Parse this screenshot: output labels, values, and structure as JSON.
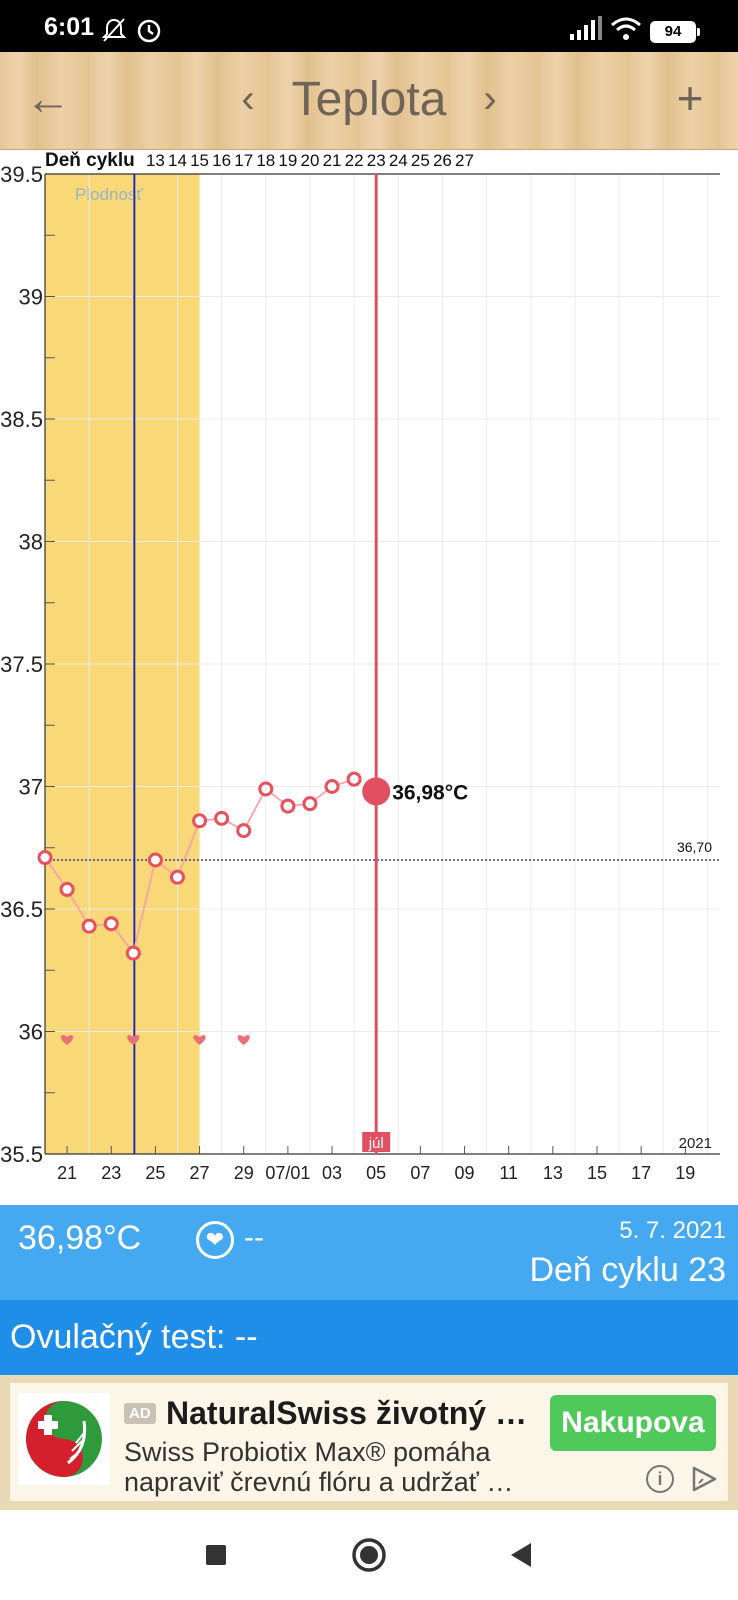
{
  "status_bar": {
    "time": "6:01",
    "battery": "94",
    "icons": [
      "mute-icon",
      "alarm-icon",
      "signal-icon",
      "wifi-icon",
      "battery-icon"
    ]
  },
  "toolbar": {
    "back_icon": "←",
    "prev_icon": "‹",
    "title": "Teplota",
    "next_icon": "›",
    "add_icon": "+"
  },
  "chart_data": {
    "type": "line",
    "title": "",
    "cycle_label": "Deň cyklu",
    "cycle_days": [
      "13",
      "14",
      "15",
      "16",
      "17",
      "18",
      "19",
      "20",
      "21",
      "22",
      "23",
      "24",
      "25",
      "26",
      "27"
    ],
    "x_ticks": [
      "21",
      "23",
      "25",
      "27",
      "29",
      "07/01",
      "03",
      "05",
      "07",
      "09",
      "11",
      "13",
      "15",
      "17",
      "19"
    ],
    "y_ticks": [
      "39.5",
      "39",
      "38.5",
      "38",
      "37.5",
      "37",
      "36.5",
      "36",
      "35.5"
    ],
    "ylim": [
      35.5,
      39.5
    ],
    "fertility_label": "Plodnosť",
    "fertility_range": [
      "06/20",
      "06/26"
    ],
    "ovulation_date": "06/24",
    "coverline": {
      "value": 36.7,
      "label": "36,70"
    },
    "selected": {
      "date": "07/05",
      "value": 36.98,
      "label": "36,98°C"
    },
    "month_label": "júl",
    "year_label": "2021",
    "series": [
      {
        "points": [
          {
            "x": "06/20",
            "y": 36.71
          },
          {
            "x": "06/21",
            "y": 36.58
          },
          {
            "x": "06/22",
            "y": 36.43
          },
          {
            "x": "06/23",
            "y": 36.44
          },
          {
            "x": "06/24",
            "y": 36.32
          },
          {
            "x": "06/25",
            "y": 36.7
          },
          {
            "x": "06/26",
            "y": 36.63
          },
          {
            "x": "06/27",
            "y": 36.86
          },
          {
            "x": "06/28",
            "y": 36.87
          },
          {
            "x": "06/29",
            "y": 36.82
          },
          {
            "x": "06/30",
            "y": 36.99
          },
          {
            "x": "07/01",
            "y": 36.92
          },
          {
            "x": "07/02",
            "y": 36.93
          },
          {
            "x": "07/03",
            "y": 37.0
          },
          {
            "x": "07/04",
            "y": 37.03
          },
          {
            "x": "07/05",
            "y": 36.98
          }
        ]
      }
    ],
    "intercourse_dates": [
      "06/21",
      "06/24",
      "06/27",
      "06/29"
    ],
    "colors": {
      "fertility": "#f8d877",
      "line": "#f4a4aa",
      "marker": "#e8505e",
      "selected": "#e05060",
      "ovulation": "#2a2a9a",
      "coverline": "#3a3a9a"
    }
  },
  "info": {
    "temperature": "36,98°C",
    "heart_value": "--",
    "date": "5. 7. 2021",
    "cycle_day": "Deň cyklu 23"
  },
  "ovulation_test": "Ovulačný test: --",
  "ad": {
    "tag": "AD",
    "title": "NaturalSwiss životný …",
    "body": "Swiss Probiotix Max® pomáha napraviť črevnú flóru a udržať …",
    "cta": "Nakupova"
  },
  "colors": {
    "info_bar": "#45a9f2",
    "ovulation_bar": "#1e8ee8",
    "cta": "#4fc95a"
  }
}
